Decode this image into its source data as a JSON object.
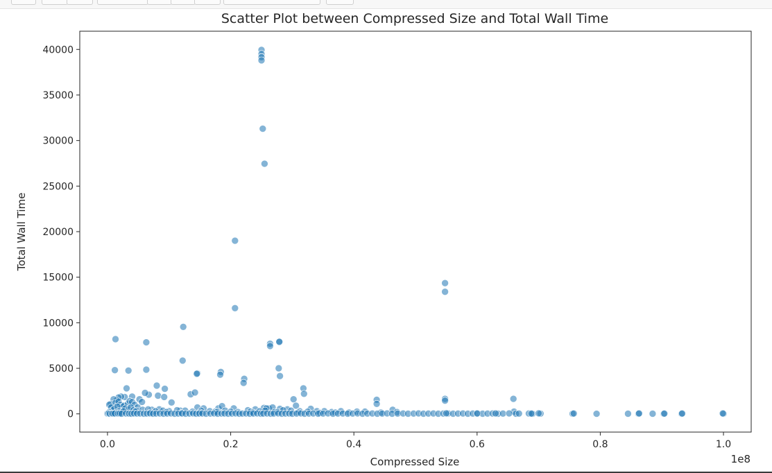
{
  "chart_data": {
    "type": "scatter",
    "title": "Scatter Plot between Compressed Size and Total Wall Time",
    "xlabel": "Compressed Size",
    "ylabel": "Total Wall Time",
    "x_offset_label": "1e8",
    "xlim": [
      -0.045,
      1.045
    ],
    "ylim": [
      -2000,
      42000
    ],
    "xticks": [
      0.0,
      0.2,
      0.4,
      0.6,
      0.8,
      1.0
    ],
    "xtick_labels": [
      "0.0",
      "0.2",
      "0.4",
      "0.6",
      "0.8",
      "1.0"
    ],
    "yticks": [
      0,
      5000,
      10000,
      15000,
      20000,
      25000,
      30000,
      35000,
      40000
    ],
    "ytick_labels": [
      "0",
      "5000",
      "10000",
      "15000",
      "20000",
      "25000",
      "30000",
      "35000",
      "40000"
    ],
    "grid": false,
    "point_color": "#1f77b4",
    "point_alpha": 0.55,
    "series": [
      {
        "x": [
          0.25,
          0.25,
          0.25,
          0.25,
          0.252,
          0.255,
          0.207,
          0.207,
          0.123,
          0.013,
          0.063,
          0.548,
          0.548,
          0.264,
          0.264,
          0.279,
          0.279,
          0.278,
          0.28,
          0.122,
          0.012,
          0.034,
          0.063,
          0.146,
          0.145,
          0.184,
          0.183,
          0.222,
          0.221,
          0.318,
          0.319,
          0.548,
          0.548,
          0.659,
          0.66,
          0.437,
          0.437,
          0.08,
          0.093,
          0.082,
          0.092,
          0.067,
          0.061,
          0.052,
          0.04,
          0.031,
          0.028,
          0.022,
          0.018,
          0.015,
          0.01,
          0.005,
          0.003,
          0.013,
          0.018,
          0.021,
          0.024,
          0.027,
          0.033,
          0.036,
          0.04,
          0.044,
          0.049,
          0.056,
          0.072,
          0.084,
          0.104,
          0.118,
          0.135,
          0.142,
          0.146,
          0.156,
          0.18,
          0.186,
          0.205,
          0.228,
          0.24,
          0.254,
          0.262,
          0.268,
          0.28,
          0.292,
          0.302,
          0.306,
          0.33,
          0.352,
          0.379,
          0.405,
          0.463,
          0.006,
          0.008,
          0.011,
          0.016,
          0.019,
          0.025,
          0.029,
          0.034,
          0.038,
          0.042,
          0.047,
          0.057,
          0.066,
          0.078,
          0.09,
          0.1,
          0.113,
          0.126,
          0.138,
          0.152,
          0.166,
          0.175,
          0.191,
          0.212,
          0.232,
          0.247,
          0.258,
          0.271,
          0.285,
          0.298,
          0.312,
          0.325,
          0.34,
          0.364,
          0.392,
          0.418,
          0.444,
          0.47,
          0.003,
          0.014,
          0.026,
          0.045,
          0.07,
          0.096,
          0.12,
          0.15,
          0.178,
          0.2,
          0.236,
          0.256,
          0.276,
          0.31,
          0.345,
          0.37,
          0.0,
          0.002,
          0.004,
          0.007,
          0.009,
          0.012,
          0.017,
          0.02,
          0.023,
          0.03,
          0.035,
          0.039,
          0.043,
          0.048,
          0.053,
          0.059,
          0.064,
          0.069,
          0.074,
          0.079,
          0.085,
          0.091,
          0.097,
          0.103,
          0.109,
          0.115,
          0.121,
          0.127,
          0.133,
          0.139,
          0.144,
          0.149,
          0.154,
          0.16,
          0.167,
          0.173,
          0.179,
          0.185,
          0.19,
          0.196,
          0.202,
          0.208,
          0.214,
          0.219,
          0.225,
          0.231,
          0.237,
          0.243,
          0.249,
          0.253,
          0.259,
          0.265,
          0.27,
          0.277,
          0.283,
          0.289,
          0.295,
          0.3,
          0.307,
          0.314,
          0.32,
          0.327,
          0.334,
          0.342,
          0.35,
          0.358,
          0.366,
          0.374,
          0.382,
          0.39,
          0.398,
          0.406,
          0.414,
          0.422,
          0.43,
          0.438,
          0.446,
          0.454,
          0.462,
          0.471,
          0.48,
          0.488,
          0.497,
          0.505,
          0.513,
          0.521,
          0.529,
          0.537,
          0.545,
          0.553,
          0.561,
          0.569,
          0.577,
          0.585,
          0.593,
          0.601,
          0.609,
          0.617,
          0.625,
          0.634,
          0.642,
          0.652,
          0.663,
          0.668,
          0.684,
          0.69,
          0.703,
          0.755,
          0.794,
          0.845,
          0.862,
          0.885,
          0.903,
          0.932,
          1.0,
          0.688,
          0.7,
          0.757,
          0.863,
          0.904,
          0.933,
          0.999,
          0.55,
          0.6,
          0.63
        ],
        "y": [
          39950,
          39500,
          39150,
          38800,
          31300,
          27450,
          19000,
          11600,
          9550,
          8200,
          7850,
          14350,
          13400,
          7700,
          7450,
          7950,
          7900,
          5000,
          4150,
          5850,
          4800,
          4750,
          4850,
          4450,
          4400,
          4600,
          4300,
          3850,
          3400,
          2800,
          2200,
          1650,
          1450,
          1650,
          250,
          1550,
          1100,
          3100,
          2750,
          2000,
          1850,
          2100,
          2300,
          1600,
          1900,
          2800,
          1850,
          1900,
          1800,
          1500,
          1600,
          1100,
          1000,
          1200,
          1350,
          1000,
          800,
          900,
          1100,
          1400,
          1300,
          1000,
          700,
          1300,
          450,
          500,
          1250,
          350,
          2150,
          2350,
          700,
          600,
          600,
          850,
          600,
          400,
          500,
          650,
          600,
          700,
          550,
          500,
          1600,
          900,
          550,
          300,
          300,
          250,
          450,
          700,
          400,
          550,
          800,
          300,
          200,
          600,
          500,
          700,
          400,
          350,
          450,
          500,
          300,
          350,
          300,
          400,
          350,
          250,
          350,
          300,
          250,
          350,
          200,
          250,
          300,
          600,
          200,
          400,
          350,
          300,
          250,
          300,
          200,
          150,
          250,
          150,
          200,
          200,
          150,
          300,
          250,
          150,
          200,
          100,
          150,
          200,
          250,
          150,
          350,
          200,
          150,
          100,
          150,
          30,
          60,
          20,
          50,
          30,
          40,
          30,
          50,
          20,
          40,
          30,
          20,
          50,
          30,
          40,
          20,
          30,
          50,
          20,
          30,
          40,
          20,
          30,
          50,
          20,
          30,
          40,
          20,
          30,
          50,
          20,
          30,
          40,
          20,
          30,
          50,
          20,
          30,
          40,
          20,
          30,
          50,
          20,
          30,
          40,
          20,
          30,
          50,
          20,
          30,
          40,
          20,
          30,
          50,
          20,
          30,
          40,
          20,
          30,
          50,
          20,
          30,
          40,
          20,
          30,
          50,
          20,
          30,
          40,
          20,
          30,
          50,
          20,
          30,
          40,
          20,
          30,
          50,
          20,
          30,
          40,
          20,
          30,
          50,
          20,
          30,
          40,
          20,
          30,
          50,
          20,
          30,
          40,
          20,
          30,
          50,
          20,
          30,
          40,
          20,
          30,
          50,
          20,
          30,
          40,
          20,
          30,
          20,
          10,
          20,
          10,
          20,
          10,
          10,
          10,
          30,
          60,
          40,
          50,
          30,
          40,
          50,
          60,
          40,
          50
        ]
      }
    ]
  }
}
